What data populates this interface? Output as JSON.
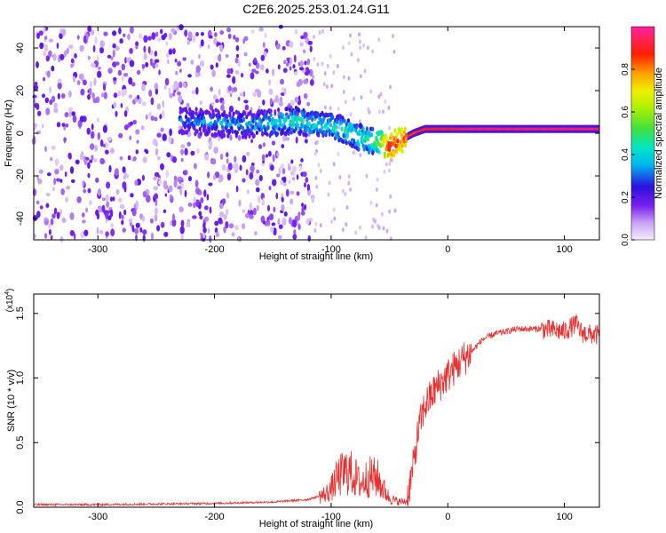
{
  "figure_title": "C2E6.2025.253.01.24.G11",
  "colors": {
    "snr_line": "#e83030",
    "axis": "#000000",
    "spectrogram_background": "#ffffff"
  },
  "chart_data": [
    {
      "type": "heatmap",
      "title": "C2E6.2025.253.01.24.G11",
      "xlabel": "Height of straight line (km)",
      "ylabel": "Frequency (Hz)",
      "xlim": [
        -355,
        130
      ],
      "ylim": [
        -50,
        50
      ],
      "xticks": [
        -300,
        -200,
        -100,
        0,
        100
      ],
      "yticks": [
        -40,
        -20,
        0,
        20,
        40
      ],
      "colorbar": {
        "label": "Normalized spectral amplitude",
        "range": [
          0,
          1
        ],
        "ticks": [
          "0.0",
          "0.2",
          "0.4",
          "0.6",
          "0.8"
        ],
        "tick_values": [
          0.0,
          0.2,
          0.4,
          0.6,
          0.8
        ]
      },
      "signal_trace": {
        "height_km": [
          -230,
          -200,
          -170,
          -150,
          -130,
          -110,
          -90,
          -75,
          -60,
          -50,
          -40,
          -30,
          -20,
          0,
          20,
          50,
          80,
          110,
          130
        ],
        "frequency_hz": [
          6,
          5,
          4,
          5,
          6,
          4,
          2,
          -2,
          -4,
          -6,
          -3,
          0,
          2,
          2,
          2,
          2,
          2,
          2,
          2
        ],
        "amplitude": [
          0.3,
          0.35,
          0.35,
          0.4,
          0.45,
          0.4,
          0.45,
          0.45,
          0.5,
          0.9,
          0.85,
          0.85,
          0.9,
          0.9,
          0.95,
          0.95,
          0.95,
          0.95,
          0.95
        ]
      }
    },
    {
      "type": "line",
      "xlabel": "Height of straight line (km)",
      "ylabel": "SNR (10 * v/v)",
      "scale_label": "(x10",
      "scale_exponent": "4",
      "xlim": [
        -355,
        130
      ],
      "ylim": [
        0,
        1.65
      ],
      "xticks": [
        -300,
        -200,
        -100,
        0,
        100
      ],
      "yticks": [
        0.0,
        0.5,
        1.0,
        1.5
      ],
      "ytick_labels": [
        "0.0",
        "0.5",
        "1.0",
        "1.5"
      ],
      "series": [
        {
          "name": "SNR",
          "x": [
            -355,
            -300,
            -250,
            -200,
            -150,
            -120,
            -105,
            -100,
            -95,
            -90,
            -85,
            -80,
            -75,
            -70,
            -65,
            -60,
            -55,
            -50,
            -45,
            -40,
            -35,
            -30,
            -25,
            -20,
            -10,
            0,
            10,
            20,
            30,
            40,
            60,
            80,
            90,
            100,
            110,
            115,
            120,
            130
          ],
          "y": [
            0.02,
            0.02,
            0.025,
            0.03,
            0.04,
            0.06,
            0.1,
            0.14,
            0.22,
            0.26,
            0.28,
            0.24,
            0.18,
            0.22,
            0.24,
            0.22,
            0.14,
            0.07,
            0.05,
            0.04,
            0.05,
            0.3,
            0.6,
            0.78,
            0.92,
            1.02,
            1.12,
            1.2,
            1.3,
            1.34,
            1.38,
            1.38,
            1.37,
            1.36,
            1.42,
            1.35,
            1.34,
            1.33
          ]
        }
      ]
    }
  ]
}
